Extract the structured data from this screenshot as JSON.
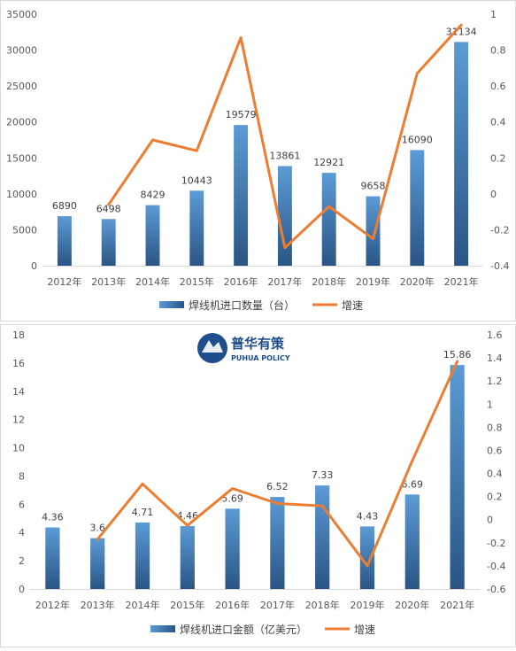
{
  "logo": {
    "title": "普华有策",
    "subtitle": "PUHUA POLICY"
  },
  "chart_data": [
    {
      "type": "bar",
      "categories": [
        "2012年",
        "2013年",
        "2014年",
        "2015年",
        "2016年",
        "2017年",
        "2018年",
        "2019年",
        "2020年",
        "2021年"
      ],
      "series": [
        {
          "name": "焊线机进口数量（台）",
          "type": "bar",
          "axis": "left",
          "values": [
            6890,
            6498,
            8429,
            10443,
            19579,
            13861,
            12921,
            9658,
            16090,
            31134
          ],
          "color": "#3a6fb0"
        },
        {
          "name": "增速",
          "type": "line",
          "axis": "right",
          "values": [
            null,
            -0.06,
            0.3,
            0.24,
            0.87,
            -0.3,
            -0.07,
            -0.25,
            0.67,
            0.94
          ],
          "color": "#ed7d31"
        }
      ],
      "y_left": {
        "min": 0,
        "max": 35000,
        "step": 5000
      },
      "y_right": {
        "min": -0.4,
        "max": 1,
        "step": 0.2
      },
      "legend_position": "bottom"
    },
    {
      "type": "bar",
      "categories": [
        "2012年",
        "2013年",
        "2014年",
        "2015年",
        "2016年",
        "2017年",
        "2018年",
        "2019年",
        "2020年",
        "2021年"
      ],
      "series": [
        {
          "name": "焊线机进口金额（亿美元）",
          "type": "bar",
          "axis": "left",
          "values": [
            4.36,
            3.6,
            4.71,
            4.46,
            5.69,
            6.52,
            7.33,
            4.43,
            6.69,
            15.86
          ],
          "color": "#3a6fb0"
        },
        {
          "name": "增速",
          "type": "line",
          "axis": "right",
          "values": [
            null,
            -0.17,
            0.31,
            -0.05,
            0.27,
            0.14,
            0.12,
            -0.4,
            0.51,
            1.37
          ],
          "color": "#ed7d31"
        }
      ],
      "y_left": {
        "min": 0,
        "max": 18,
        "step": 2
      },
      "y_right": {
        "min": -0.6,
        "max": 1.6,
        "step": 0.2
      },
      "legend_position": "bottom"
    }
  ]
}
